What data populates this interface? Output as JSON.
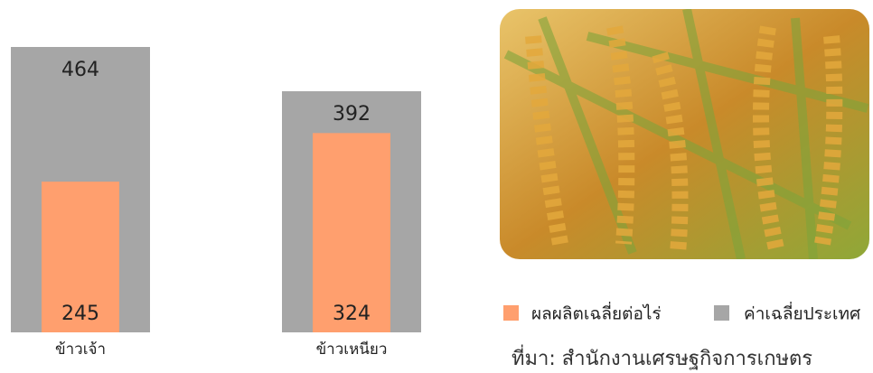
{
  "chart_data": {
    "type": "overlap_bar",
    "categories": [
      "ข้าวเจ้า",
      "ข้าวเหนียว"
    ],
    "series": [
      {
        "name": "ค่าเฉลี่ยประเทศ",
        "color": "#a6a6a6",
        "values": [
          464,
          392
        ]
      },
      {
        "name": "ผลผลิตเฉลี่ยต่อไร่",
        "color": "#ff9f6e",
        "values": [
          245,
          324
        ]
      }
    ],
    "source": "ที่มา: สำนักงานเศรษฐกิจการเกษตร"
  }
}
